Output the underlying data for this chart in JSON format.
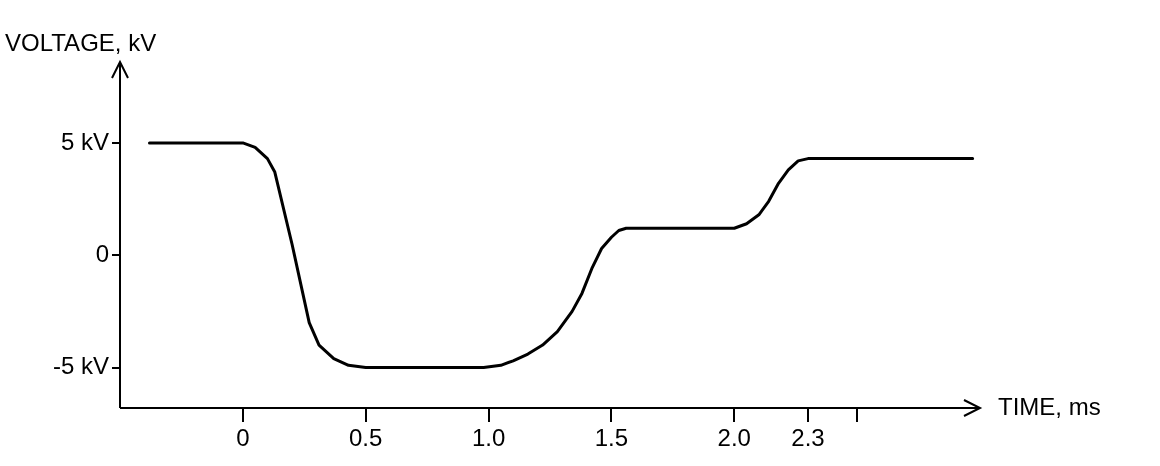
{
  "chart_data": {
    "type": "line",
    "xlabel": "TIME, ms",
    "ylabel": "VOLTAGE, kV",
    "x": [
      -0.38,
      -0.1,
      0,
      0.05,
      0.1,
      0.13,
      0.2,
      0.27,
      0.31,
      0.37,
      0.43,
      0.5,
      0.8,
      0.98,
      1.05,
      1.1,
      1.16,
      1.22,
      1.28,
      1.34,
      1.38,
      1.42,
      1.46,
      1.5,
      1.53,
      1.56,
      1.7,
      1.85,
      2.0,
      2.05,
      2.1,
      2.14,
      2.18,
      2.22,
      2.26,
      2.3,
      2.6,
      2.97
    ],
    "series": [
      {
        "color": "#000000",
        "values": [
          5,
          5,
          5,
          4.8,
          4.3,
          3.7,
          0.5,
          -3,
          -4,
          -4.6,
          -4.9,
          -5,
          -5,
          -5,
          -4.9,
          -4.7,
          -4.4,
          -4,
          -3.4,
          -2.5,
          -1.7,
          -0.6,
          0.3,
          0.8,
          1.1,
          1.2,
          1.2,
          1.2,
          1.2,
          1.4,
          1.8,
          2.4,
          3.2,
          3.8,
          4.2,
          4.3,
          4.3,
          4.3
        ]
      }
    ],
    "xlim": [
      -0.5,
      3.0
    ],
    "xticks": [
      0,
      0.5,
      {
        "value": 1,
        "label": "1.0"
      },
      1.5,
      {
        "value": 2,
        "label": "2.0"
      },
      2.3,
      {
        "value": 2.5,
        "label": null
      }
    ],
    "ylim": [
      -6.8,
      8.6
    ],
    "yticks": [
      {
        "value": -5,
        "label": "-5 kV"
      },
      0,
      {
        "value": 5,
        "label": "5 kV"
      }
    ],
    "grid": false,
    "legend": false,
    "marker": "none",
    "line_style": "solid"
  }
}
